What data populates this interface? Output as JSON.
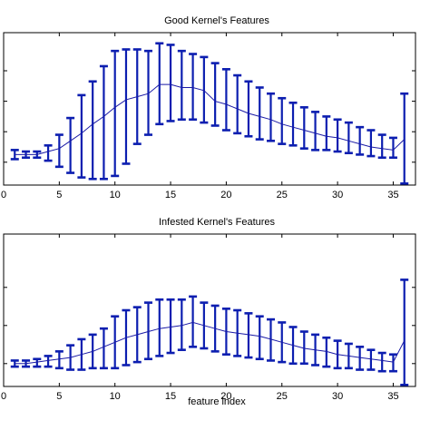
{
  "colors": {
    "series": "#1a1aa6",
    "errorbar": "#0c1eb0",
    "axes": "#000000",
    "background": "#ffffff"
  },
  "chart_data": [
    {
      "type": "line",
      "title": "Good Kernel's Features",
      "xlabel": "",
      "ylabel": "",
      "xlim": [
        0,
        37
      ],
      "ylim": [
        0,
        1
      ],
      "grid": false,
      "x_ticks": [
        0,
        5,
        10,
        15,
        20,
        25,
        30,
        35
      ],
      "y_tick_values": [
        0.15,
        0.35,
        0.55,
        0.75
      ],
      "error_bars": true,
      "series": [
        {
          "x": [
            1,
            2,
            3,
            4,
            5,
            6,
            7,
            8,
            9,
            10,
            11,
            12,
            13,
            14,
            15,
            16,
            17,
            18,
            19,
            20,
            21,
            22,
            23,
            24,
            25,
            26,
            27,
            28,
            29,
            30,
            31,
            32,
            33,
            34,
            35,
            36
          ],
          "values": [
            0.2,
            0.2,
            0.2,
            0.22,
            0.24,
            0.29,
            0.34,
            0.4,
            0.45,
            0.51,
            0.56,
            0.58,
            0.6,
            0.66,
            0.66,
            0.64,
            0.64,
            0.62,
            0.55,
            0.53,
            0.5,
            0.47,
            0.45,
            0.43,
            0.4,
            0.38,
            0.36,
            0.34,
            0.32,
            0.31,
            0.29,
            0.27,
            0.25,
            0.24,
            0.23,
            0.3
          ],
          "lower": [
            0.17,
            0.18,
            0.18,
            0.16,
            0.12,
            0.08,
            0.05,
            0.04,
            0.04,
            0.06,
            0.14,
            0.27,
            0.33,
            0.4,
            0.42,
            0.43,
            0.43,
            0.41,
            0.39,
            0.36,
            0.34,
            0.32,
            0.3,
            0.29,
            0.27,
            0.26,
            0.24,
            0.23,
            0.23,
            0.22,
            0.21,
            0.2,
            0.19,
            0.18,
            0.18,
            0.01
          ],
          "upper": [
            0.23,
            0.22,
            0.22,
            0.26,
            0.33,
            0.44,
            0.59,
            0.68,
            0.78,
            0.88,
            0.89,
            0.89,
            0.88,
            0.93,
            0.92,
            0.88,
            0.86,
            0.84,
            0.8,
            0.76,
            0.72,
            0.68,
            0.64,
            0.6,
            0.57,
            0.54,
            0.51,
            0.48,
            0.45,
            0.43,
            0.41,
            0.38,
            0.36,
            0.33,
            0.31,
            0.6
          ]
        }
      ]
    },
    {
      "type": "line",
      "title": "Infested Kernel's Features",
      "xlabel": "feature index",
      "ylabel": "",
      "xlim": [
        0,
        37
      ],
      "ylim": [
        0,
        1
      ],
      "grid": false,
      "x_ticks": [
        0,
        5,
        10,
        15,
        20,
        25,
        30,
        35
      ],
      "y_tick_values": [
        0.15,
        0.4,
        0.65
      ],
      "error_bars": true,
      "series": [
        {
          "x": [
            1,
            2,
            3,
            4,
            5,
            6,
            7,
            8,
            9,
            10,
            11,
            12,
            13,
            14,
            15,
            16,
            17,
            18,
            19,
            20,
            21,
            22,
            23,
            24,
            25,
            26,
            27,
            28,
            29,
            30,
            31,
            32,
            33,
            34,
            35,
            36
          ],
          "values": [
            0.15,
            0.15,
            0.16,
            0.17,
            0.18,
            0.19,
            0.21,
            0.23,
            0.26,
            0.29,
            0.32,
            0.34,
            0.36,
            0.38,
            0.39,
            0.4,
            0.42,
            0.4,
            0.38,
            0.36,
            0.35,
            0.34,
            0.33,
            0.31,
            0.29,
            0.27,
            0.25,
            0.24,
            0.23,
            0.21,
            0.2,
            0.19,
            0.18,
            0.17,
            0.16,
            0.3
          ],
          "lower": [
            0.13,
            0.13,
            0.13,
            0.13,
            0.12,
            0.11,
            0.11,
            0.12,
            0.12,
            0.12,
            0.14,
            0.16,
            0.18,
            0.2,
            0.22,
            0.24,
            0.26,
            0.25,
            0.23,
            0.21,
            0.2,
            0.19,
            0.18,
            0.17,
            0.16,
            0.15,
            0.15,
            0.14,
            0.13,
            0.12,
            0.12,
            0.11,
            0.11,
            0.1,
            0.1,
            0.01
          ],
          "upper": [
            0.17,
            0.17,
            0.18,
            0.2,
            0.23,
            0.27,
            0.31,
            0.34,
            0.38,
            0.46,
            0.5,
            0.52,
            0.55,
            0.57,
            0.57,
            0.57,
            0.59,
            0.55,
            0.53,
            0.51,
            0.5,
            0.48,
            0.46,
            0.44,
            0.42,
            0.39,
            0.36,
            0.34,
            0.32,
            0.3,
            0.28,
            0.26,
            0.24,
            0.22,
            0.21,
            0.7
          ]
        }
      ]
    }
  ]
}
